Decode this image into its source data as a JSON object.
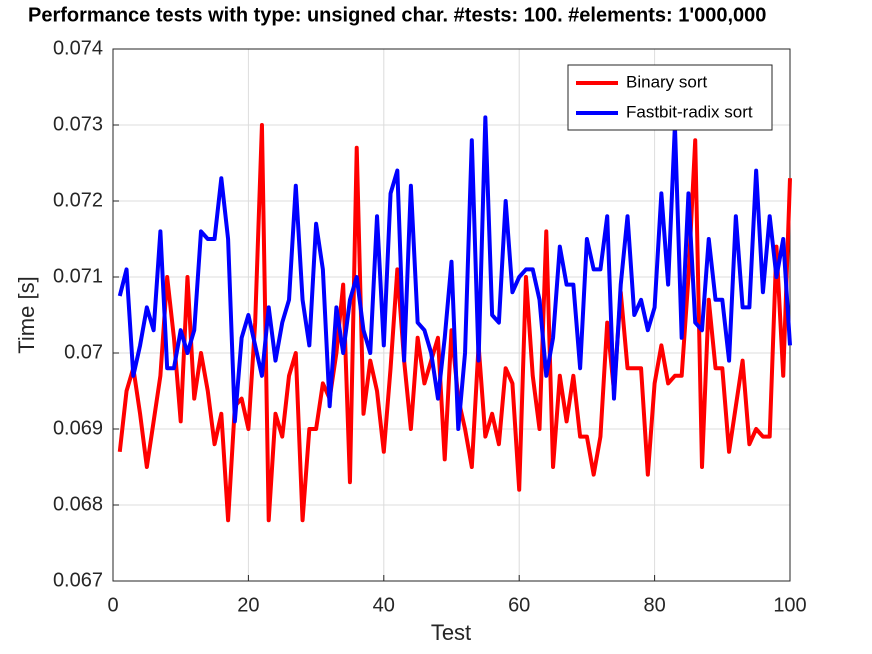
{
  "chart_data": {
    "type": "line",
    "title": "Performance tests with type: unsigned char. #tests: 100. #elements: 1'000,000",
    "xlabel": "Test",
    "ylabel": "Time [s]",
    "x": [
      1,
      2,
      3,
      4,
      5,
      6,
      7,
      8,
      9,
      10,
      11,
      12,
      13,
      14,
      15,
      16,
      17,
      18,
      19,
      20,
      21,
      22,
      23,
      24,
      25,
      26,
      27,
      28,
      29,
      30,
      31,
      32,
      33,
      34,
      35,
      36,
      37,
      38,
      39,
      40,
      41,
      42,
      43,
      44,
      45,
      46,
      47,
      48,
      49,
      50,
      51,
      52,
      53,
      54,
      55,
      56,
      57,
      58,
      59,
      60,
      61,
      62,
      63,
      64,
      65,
      66,
      67,
      68,
      69,
      70,
      71,
      72,
      73,
      74,
      75,
      76,
      77,
      78,
      79,
      80,
      81,
      82,
      83,
      84,
      85,
      86,
      87,
      88,
      89,
      90,
      91,
      92,
      93,
      94,
      95,
      96,
      97,
      98,
      99,
      100
    ],
    "series": [
      {
        "name": "Binary sort",
        "color": "#ff0000",
        "values": [
          0.0687,
          0.0695,
          0.0698,
          0.0692,
          0.0685,
          0.0691,
          0.0697,
          0.071,
          0.0702,
          0.0691,
          0.071,
          0.0694,
          0.07,
          0.0695,
          0.0688,
          0.0692,
          0.0678,
          0.0693,
          0.0694,
          0.069,
          0.0704,
          0.073,
          0.0678,
          0.0692,
          0.0689,
          0.0697,
          0.07,
          0.0678,
          0.069,
          0.069,
          0.0696,
          0.0694,
          0.07,
          0.0709,
          0.0683,
          0.0727,
          0.0692,
          0.0699,
          0.0695,
          0.0687,
          0.0698,
          0.0711,
          0.0699,
          0.069,
          0.0702,
          0.0696,
          0.0699,
          0.0702,
          0.0686,
          0.0703,
          0.0694,
          0.069,
          0.0685,
          0.0701,
          0.0689,
          0.0692,
          0.0688,
          0.0698,
          0.0696,
          0.0682,
          0.071,
          0.0697,
          0.069,
          0.0716,
          0.0685,
          0.0697,
          0.0691,
          0.0697,
          0.0689,
          0.0689,
          0.0684,
          0.0689,
          0.0704,
          0.0695,
          0.0708,
          0.0698,
          0.0698,
          0.0698,
          0.0684,
          0.0696,
          0.0701,
          0.0696,
          0.0697,
          0.0697,
          0.071,
          0.0728,
          0.0685,
          0.0707,
          0.0698,
          0.0698,
          0.0687,
          0.0693,
          0.0699,
          0.0688,
          0.069,
          0.0689,
          0.0689,
          0.0714,
          0.0697,
          0.0723
        ]
      },
      {
        "name": "Fastbit-radix sort",
        "color": "#0000ff",
        "values": [
          0.07075,
          0.0711,
          0.0697,
          0.0701,
          0.0706,
          0.0703,
          0.0716,
          0.0698,
          0.0698,
          0.0703,
          0.07,
          0.0703,
          0.0716,
          0.0715,
          0.0715,
          0.0723,
          0.0715,
          0.0691,
          0.0702,
          0.0705,
          0.0701,
          0.0697,
          0.0706,
          0.0699,
          0.0704,
          0.0707,
          0.0722,
          0.0707,
          0.0701,
          0.0717,
          0.0711,
          0.0693,
          0.0706,
          0.07,
          0.0707,
          0.071,
          0.0703,
          0.07,
          0.0718,
          0.0701,
          0.0721,
          0.0724,
          0.0699,
          0.0722,
          0.0704,
          0.0703,
          0.07,
          0.0694,
          0.0702,
          0.0712,
          0.069,
          0.07,
          0.0728,
          0.0699,
          0.0731,
          0.0705,
          0.0704,
          0.072,
          0.0708,
          0.071,
          0.0711,
          0.0711,
          0.0707,
          0.0697,
          0.0702,
          0.0714,
          0.0709,
          0.0709,
          0.0698,
          0.0715,
          0.0711,
          0.0711,
          0.0718,
          0.0694,
          0.0709,
          0.0718,
          0.0705,
          0.0707,
          0.0703,
          0.0706,
          0.0721,
          0.0709,
          0.073,
          0.0702,
          0.0721,
          0.0704,
          0.0703,
          0.0715,
          0.0707,
          0.0707,
          0.0699,
          0.0718,
          0.0706,
          0.0706,
          0.0724,
          0.0708,
          0.0718,
          0.071,
          0.0715,
          0.0701
        ]
      }
    ],
    "xlim": [
      0,
      100
    ],
    "xticks": [
      0,
      20,
      40,
      60,
      80,
      100
    ],
    "ylim": [
      0.067,
      0.074
    ],
    "yticks": [
      0.067,
      0.068,
      0.069,
      0.07,
      0.071,
      0.072,
      0.073,
      0.074
    ],
    "grid": true,
    "legend": "upper right"
  }
}
